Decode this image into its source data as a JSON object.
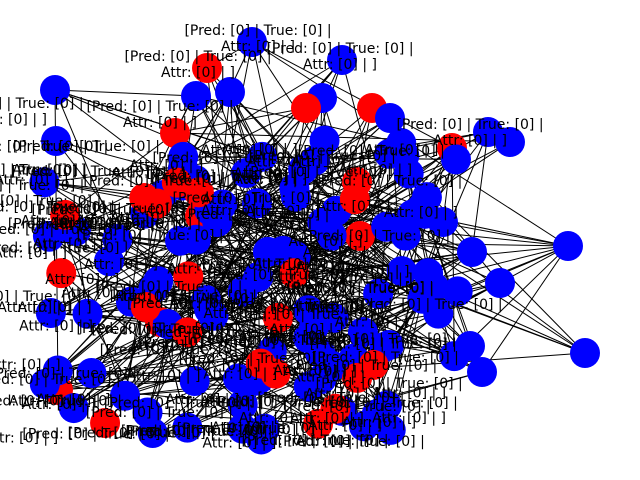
{
  "graph": {
    "type": "network",
    "colors": {
      "positive": "#ff0000",
      "negative": "#0000ff",
      "edge": "#000000",
      "background": "#ffffff"
    },
    "label_line1": "[Pred: [0] | True: [0] |",
    "label_line2": "Attr: [0] | ]",
    "legible_labels": [
      {
        "line1": "[Pred: [0] | True: [0] |",
        "line2": "Attr: [0] | ]"
      },
      {
        "line1": "[Pred: [0] | True: [0] |",
        "line2": "Attr: [0] | ]"
      },
      {
        "line1": "[Pred: [0] | True: [0] |",
        "line2": "Attr: [0] | ]"
      },
      {
        "line1": "[Pred: [0] | True: [0] |",
        "line2": "Attr: [0] | ]"
      },
      {
        "line1": "[Pred: [0] | True: [0] |",
        "line2": "Attr: [0] | ]"
      },
      {
        "line1": "[Pred: [0] | True: [0] |",
        "line2": "Attr: [0] | ]"
      }
    ],
    "cluster_blue_count": 95,
    "cluster_red_count": 18
  }
}
